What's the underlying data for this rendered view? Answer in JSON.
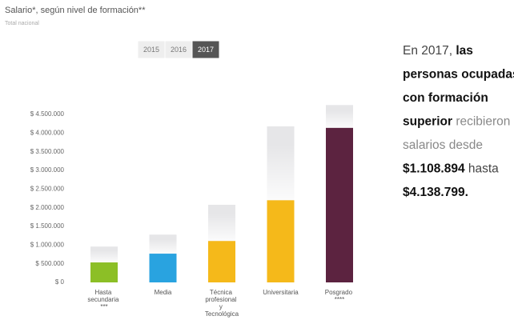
{
  "chart_data": {
    "type": "range_bar",
    "title": "Salario*, según nivel de formación**",
    "subtitle": "Total nacional",
    "year_buttons": [
      "2015",
      "2016",
      "2017"
    ],
    "selected_year": "2017",
    "categories": [
      "Hasta secundaria ***",
      "Media",
      "Técnica profesional y Tecnológica",
      "Universitaria",
      "Posgrado ****"
    ],
    "values": [
      535000,
      770000,
      1108894,
      2200000,
      4138799
    ],
    "upper_values": [
      960000,
      1280000,
      2080000,
      4180000,
      4750000
    ],
    "colors": [
      "#8cbf26",
      "#29a3e0",
      "#f5b91a",
      "#f5b91a",
      "#5c2340"
    ],
    "upper_color": "#e6e6e8",
    "ylim": [
      0,
      4500000
    ],
    "yticks": [
      {
        "value": 0,
        "label": "$ 0"
      },
      {
        "value": 500000,
        "label": "$ 500.000"
      },
      {
        "value": 1000000,
        "label": "$ 1.000.000"
      },
      {
        "value": 1500000,
        "label": "$ 1.500.000"
      },
      {
        "value": 2000000,
        "label": "$ 2.000.000"
      },
      {
        "value": 2500000,
        "label": "$ 2.500.000"
      },
      {
        "value": 3000000,
        "label": "$ 3.000.000"
      },
      {
        "value": 3500000,
        "label": "$ 3.500.000"
      },
      {
        "value": 4000000,
        "label": "$ 4.000.000"
      },
      {
        "value": 4500000,
        "label": "$ 4.500.000"
      }
    ],
    "annotation": [
      [
        {
          "text": "En 2017, ",
          "style": "normal"
        },
        {
          "text": "las",
          "style": "bold"
        }
      ],
      [
        {
          "text": "personas ocupadas",
          "style": "bold"
        }
      ],
      [
        {
          "text": "con formación",
          "style": "bold"
        }
      ],
      [
        {
          "text": "superior",
          "style": "bold"
        },
        {
          "text": " recibieron",
          "style": "light"
        }
      ],
      [
        {
          "text": "salarios desde",
          "style": "light"
        }
      ],
      [
        {
          "text": "$1.108.894",
          "style": "bold"
        },
        {
          "text": " hasta",
          "style": "normal"
        }
      ],
      [
        {
          "text": "$4.138.799.",
          "style": "bold"
        }
      ]
    ]
  }
}
